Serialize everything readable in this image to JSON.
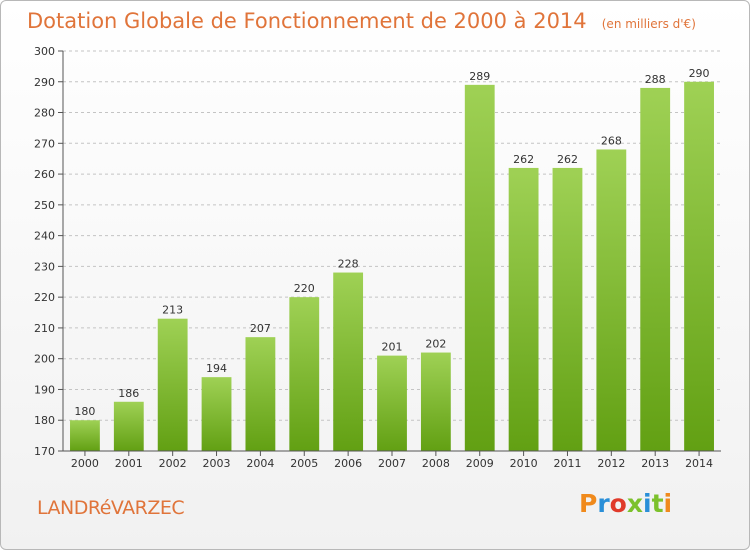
{
  "header": {
    "title": "Dotation Globale de Fonctionnement de 2000 à 2014",
    "unit": "(en milliers d'€)"
  },
  "footer": {
    "commune": "LANDRéVARZEC",
    "logo_text": "Proxiti",
    "logo_colors": [
      "#f08a1c",
      "#2a8fd8",
      "#e03a2a",
      "#7cc12c",
      "#2a8fd8",
      "#7cc12c",
      "#f08a1c"
    ]
  },
  "chart_data": {
    "type": "bar",
    "title": "Dotation Globale de Fonctionnement de 2000 à 2014",
    "xlabel": "",
    "ylabel": "",
    "categories": [
      "2000",
      "2001",
      "2002",
      "2003",
      "2004",
      "2005",
      "2006",
      "2007",
      "2008",
      "2009",
      "2010",
      "2011",
      "2012",
      "2013",
      "2014"
    ],
    "values": [
      180,
      186,
      213,
      194,
      207,
      220,
      228,
      201,
      202,
      289,
      262,
      262,
      268,
      288,
      290
    ],
    "ylim": [
      170,
      300
    ],
    "yticks": [
      170,
      180,
      190,
      200,
      210,
      220,
      230,
      240,
      250,
      260,
      270,
      280,
      290,
      300
    ],
    "grid": "horizontal dashed",
    "bar_color_top": "#9fd155",
    "bar_color_bottom": "#62a013"
  }
}
